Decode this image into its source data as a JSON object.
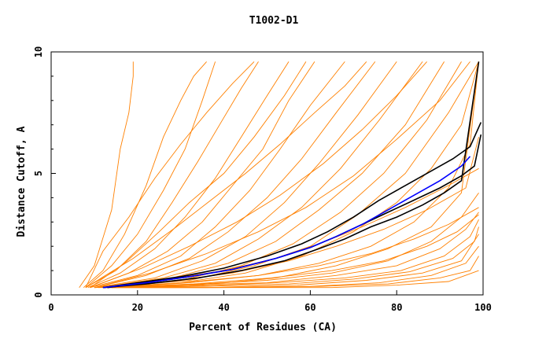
{
  "chart_data": {
    "type": "line",
    "title": "T1002-D1",
    "xlabel": "Percent of Residues (CA)",
    "ylabel": "Distance Cutoff, A",
    "xlim": [
      0,
      100
    ],
    "ylim": [
      0,
      10
    ],
    "x_ticks": [
      0,
      20,
      40,
      60,
      80,
      100
    ],
    "y_ticks": [
      0,
      5,
      10
    ],
    "grid": false,
    "colors": {
      "background_curves": "#ff8000",
      "highlight_black": "#000000",
      "highlight_blue": "#0000ff",
      "axis": "#000000"
    },
    "series": [
      {
        "name": "orange-curve-01",
        "color": "#ff8000",
        "x": [
          6.5,
          10,
          14,
          16,
          18,
          19,
          19
        ],
        "y": [
          0.3,
          1.2,
          3.5,
          6.0,
          7.5,
          9.0,
          9.6
        ]
      },
      {
        "name": "orange-curve-02",
        "color": "#ff8000",
        "x": [
          7.5,
          12,
          17,
          22,
          26,
          30,
          33,
          36
        ],
        "y": [
          0.3,
          1.0,
          2.5,
          4.5,
          6.5,
          8.0,
          9.0,
          9.6
        ]
      },
      {
        "name": "orange-curve-03",
        "color": "#ff8000",
        "x": [
          8,
          14,
          20,
          26,
          31,
          35,
          38
        ],
        "y": [
          0.3,
          1.2,
          2.5,
          4.3,
          6.0,
          8.0,
          9.6
        ]
      },
      {
        "name": "orange-curve-04",
        "color": "#ff8000",
        "x": [
          8,
          15,
          22,
          28,
          34,
          39,
          44,
          48
        ],
        "y": [
          0.3,
          1.0,
          2.2,
          3.8,
          5.5,
          7.0,
          8.5,
          9.6
        ]
      },
      {
        "name": "orange-curve-05",
        "color": "#ff8000",
        "x": [
          8.5,
          16,
          24,
          31,
          38,
          44,
          50,
          55
        ],
        "y": [
          0.3,
          0.9,
          1.9,
          3.2,
          4.8,
          6.5,
          8.2,
          9.6
        ]
      },
      {
        "name": "orange-curve-06",
        "color": "#ff8000",
        "x": [
          9,
          18,
          27,
          35,
          42,
          49,
          55,
          61
        ],
        "y": [
          0.3,
          0.9,
          1.8,
          3.0,
          4.5,
          6.0,
          8.0,
          9.6
        ]
      },
      {
        "name": "orange-curve-07",
        "color": "#ff8000",
        "x": [
          9,
          20,
          30,
          38,
          46,
          53,
          60,
          68
        ],
        "y": [
          0.3,
          0.8,
          1.6,
          2.8,
          4.3,
          6.0,
          7.8,
          9.6
        ]
      },
      {
        "name": "orange-curve-08",
        "color": "#ff8000",
        "x": [
          10,
          22,
          32,
          41,
          50,
          58,
          66,
          75
        ],
        "y": [
          0.3,
          0.8,
          1.5,
          2.6,
          4.0,
          5.6,
          7.5,
          9.6
        ]
      },
      {
        "name": "orange-curve-09",
        "color": "#ff8000",
        "x": [
          10,
          24,
          35,
          45,
          54,
          62,
          71,
          80
        ],
        "y": [
          0.3,
          0.7,
          1.4,
          2.4,
          3.8,
          5.4,
          7.4,
          9.6
        ]
      },
      {
        "name": "orange-curve-10",
        "color": "#ff8000",
        "x": [
          11,
          26,
          38,
          48,
          58,
          67,
          76,
          86
        ],
        "y": [
          0.3,
          0.7,
          1.3,
          2.3,
          3.6,
          5.2,
          7.2,
          9.6
        ]
      },
      {
        "name": "orange-curve-11",
        "color": "#ff8000",
        "x": [
          11,
          28,
          41,
          52,
          62,
          72,
          82,
          91
        ],
        "y": [
          0.3,
          0.7,
          1.3,
          2.2,
          3.5,
          5.0,
          7.0,
          9.6
        ]
      },
      {
        "name": "orange-curve-12",
        "color": "#ff8000",
        "x": [
          12,
          30,
          44,
          56,
          67,
          77,
          87,
          95
        ],
        "y": [
          0.3,
          0.6,
          1.2,
          2.1,
          3.4,
          5.0,
          7.2,
          9.6
        ]
      },
      {
        "name": "orange-curve-13",
        "color": "#ff8000",
        "x": [
          12,
          32,
          47,
          60,
          71,
          82,
          92,
          99
        ],
        "y": [
          0.3,
          0.6,
          1.2,
          2.0,
          3.3,
          5.0,
          7.5,
          9.6
        ]
      },
      {
        "name": "orange-curve-14",
        "color": "#ff8000",
        "x": [
          9,
          17,
          25,
          32,
          40,
          47,
          54,
          59
        ],
        "y": [
          0.3,
          1.3,
          2.6,
          3.8,
          5.0,
          6.5,
          8.2,
          9.6
        ]
      },
      {
        "name": "orange-curve-15",
        "color": "#ff8000",
        "x": [
          8,
          19,
          29,
          37,
          45,
          53,
          61,
          68,
          73
        ],
        "y": [
          0.3,
          1.5,
          2.8,
          3.9,
          5.0,
          6.2,
          7.5,
          8.6,
          9.6
        ]
      },
      {
        "name": "orange-curve-16",
        "color": "#ff8000",
        "x": [
          12,
          30,
          45,
          58,
          70,
          80,
          88,
          95,
          99
        ],
        "y": [
          0.3,
          0.5,
          0.9,
          1.6,
          2.6,
          3.8,
          5.2,
          7.0,
          9.6
        ]
      },
      {
        "name": "orange-curve-17",
        "color": "#ff8000",
        "x": [
          14,
          32,
          48,
          62,
          74,
          84,
          92,
          97,
          99
        ],
        "y": [
          0.3,
          0.5,
          0.8,
          1.3,
          2.0,
          3.0,
          4.4,
          6.2,
          9.6
        ]
      },
      {
        "name": "orange-curve-18",
        "color": "#ff8000",
        "x": [
          15,
          35,
          52,
          66,
          78,
          88,
          95,
          99
        ],
        "y": [
          0.3,
          0.4,
          0.7,
          1.2,
          1.9,
          2.8,
          4.2,
          9.6
        ]
      },
      {
        "name": "orange-curve-19",
        "color": "#ff8000",
        "x": [
          10,
          30,
          50,
          65,
          78,
          88,
          95,
          99
        ],
        "y": [
          0.3,
          0.4,
          0.6,
          0.9,
          1.4,
          2.2,
          3.2,
          4.2
        ]
      },
      {
        "name": "orange-curve-20",
        "color": "#ff8000",
        "x": [
          10,
          30,
          50,
          66,
          80,
          90,
          96,
          99
        ],
        "y": [
          0.3,
          0.4,
          0.5,
          0.8,
          1.2,
          1.9,
          2.7,
          3.4
        ]
      },
      {
        "name": "orange-curve-21",
        "color": "#ff8000",
        "x": [
          11,
          32,
          52,
          68,
          81,
          91,
          97,
          99
        ],
        "y": [
          0.3,
          0.35,
          0.5,
          0.7,
          1.0,
          1.6,
          2.4,
          3.1
        ]
      },
      {
        "name": "orange-curve-22",
        "color": "#ff8000",
        "x": [
          12,
          35,
          55,
          70,
          83,
          93,
          98,
          99
        ],
        "y": [
          0.3,
          0.35,
          0.45,
          0.65,
          0.95,
          1.5,
          2.2,
          2.8
        ]
      },
      {
        "name": "orange-curve-23",
        "color": "#ff8000",
        "x": [
          12,
          36,
          57,
          73,
          86,
          95,
          99
        ],
        "y": [
          0.3,
          0.3,
          0.4,
          0.6,
          0.9,
          1.4,
          2.5
        ]
      },
      {
        "name": "orange-curve-24",
        "color": "#ff8000",
        "x": [
          13,
          38,
          60,
          76,
          88,
          96,
          99
        ],
        "y": [
          0.3,
          0.3,
          0.35,
          0.5,
          0.8,
          1.3,
          2.0
        ]
      },
      {
        "name": "orange-curve-25",
        "color": "#ff8000",
        "x": [
          14,
          40,
          62,
          78,
          90,
          97,
          99
        ],
        "y": [
          0.3,
          0.3,
          0.35,
          0.45,
          0.7,
          1.0,
          1.6
        ]
      },
      {
        "name": "orange-curve-26",
        "color": "#ff8000",
        "x": [
          14,
          42,
          65,
          80,
          92,
          99
        ],
        "y": [
          0.3,
          0.3,
          0.3,
          0.4,
          0.55,
          1.0
        ]
      },
      {
        "name": "orange-curve-27",
        "color": "#ff8000",
        "x": [
          12,
          30,
          48,
          62,
          74,
          84,
          92,
          99
        ],
        "y": [
          0.3,
          0.5,
          0.8,
          1.2,
          1.7,
          2.3,
          2.9,
          3.6
        ]
      },
      {
        "name": "orange-curve-28",
        "color": "#ff8000",
        "x": [
          13,
          33,
          51,
          65,
          77,
          87,
          94,
          99
        ],
        "y": [
          0.3,
          0.45,
          0.7,
          1.0,
          1.4,
          2.0,
          2.6,
          3.3
        ]
      },
      {
        "name": "orange-curve-29",
        "color": "#ff8000",
        "x": [
          10,
          25,
          40,
          52,
          62,
          72,
          82,
          92,
          99
        ],
        "y": [
          0.3,
          0.6,
          1.0,
          1.5,
          2.1,
          2.8,
          3.6,
          4.5,
          5.2
        ]
      },
      {
        "name": "orange-curve-30",
        "color": "#ff8000",
        "x": [
          11,
          27,
          42,
          55,
          66,
          77,
          87,
          96,
          99
        ],
        "y": [
          0.3,
          0.55,
          0.9,
          1.4,
          2.0,
          2.7,
          3.5,
          4.4,
          6.5
        ]
      },
      {
        "name": "orange-curve-31",
        "color": "#ff8000",
        "x": [
          8,
          12,
          18,
          24,
          30,
          36,
          42,
          47
        ],
        "y": [
          0.3,
          1.8,
          3.2,
          4.8,
          6.2,
          7.5,
          8.7,
          9.6
        ]
      },
      {
        "name": "orange-curve-32",
        "color": "#ff8000",
        "x": [
          9,
          21,
          32,
          43,
          53,
          63,
          72,
          80,
          87
        ],
        "y": [
          0.3,
          1.1,
          2.0,
          3.0,
          4.1,
          5.4,
          6.8,
          8.2,
          9.6
        ]
      },
      {
        "name": "orange-curve-33",
        "color": "#ff8000",
        "x": [
          10,
          23,
          36,
          48,
          59,
          70,
          80,
          90,
          97
        ],
        "y": [
          0.3,
          0.9,
          1.7,
          2.6,
          3.6,
          4.9,
          6.4,
          8.0,
          9.6
        ]
      },
      {
        "name": "black-curve-1",
        "color": "#000000",
        "x": [
          12,
          20,
          30,
          40,
          50,
          58,
          64,
          70,
          76,
          82,
          88,
          93,
          97,
          99.5
        ],
        "y": [
          0.3,
          0.5,
          0.75,
          1.1,
          1.6,
          2.1,
          2.6,
          3.2,
          3.9,
          4.5,
          5.1,
          5.6,
          6.1,
          7.1
        ]
      },
      {
        "name": "black-curve-2",
        "color": "#000000",
        "x": [
          13,
          22,
          32,
          42,
          52,
          60,
          66,
          72,
          78,
          84,
          90,
          95,
          98,
          99.5
        ],
        "y": [
          0.3,
          0.5,
          0.75,
          1.05,
          1.5,
          1.95,
          2.4,
          2.9,
          3.4,
          3.9,
          4.4,
          4.9,
          5.3,
          6.6
        ]
      },
      {
        "name": "black-curve-3",
        "color": "#000000",
        "x": [
          12,
          22,
          34,
          44,
          54,
          62,
          68,
          74,
          80,
          86,
          91,
          95,
          99
        ],
        "y": [
          0.3,
          0.45,
          0.7,
          1.0,
          1.4,
          1.9,
          2.3,
          2.8,
          3.2,
          3.7,
          4.2,
          4.7,
          9.6
        ]
      },
      {
        "name": "blue-curve",
        "color": "#0000ff",
        "x": [
          12,
          22,
          32,
          42,
          52,
          60,
          66,
          72,
          78,
          84,
          90,
          95,
          97
        ],
        "y": [
          0.3,
          0.5,
          0.75,
          1.05,
          1.5,
          1.95,
          2.4,
          2.9,
          3.5,
          4.1,
          4.7,
          5.3,
          5.7
        ]
      }
    ]
  }
}
